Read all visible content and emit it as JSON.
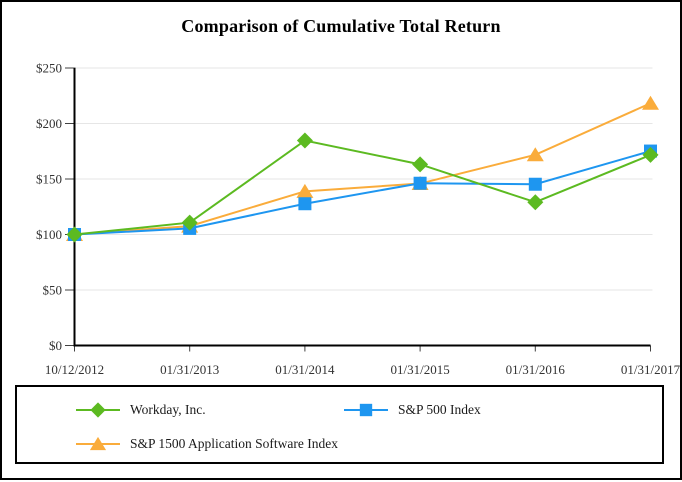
{
  "chart_data": {
    "type": "line",
    "title": "Comparison of Cumulative Total Return",
    "categories": [
      "10/12/2012",
      "01/31/2013",
      "01/31/2014",
      "01/31/2015",
      "01/31/2016",
      "01/31/2017"
    ],
    "series": [
      {
        "name": "Workday, Inc.",
        "marker": "diamond",
        "color": "#5CBA21",
        "values": [
          100,
          110.73,
          184.63,
          163.19,
          129.07,
          171.7
        ]
      },
      {
        "name": "S&P 500 Index",
        "marker": "square",
        "color": "#1E96F0",
        "values": [
          100,
          105.49,
          127.72,
          146.18,
          145.28,
          175.17
        ]
      },
      {
        "name": "S&P 1500 Application Software Index",
        "marker": "triangle",
        "color": "#FAAC3B",
        "values": [
          100,
          107.59,
          138.9,
          145.91,
          171.81,
          218.26
        ]
      }
    ],
    "ylim": [
      0,
      250
    ],
    "y_ticks": [
      {
        "label": "$0",
        "value": 0
      },
      {
        "label": "$50",
        "value": 50
      },
      {
        "label": "$100",
        "value": 100
      },
      {
        "label": "$150",
        "value": 150
      },
      {
        "label": "$200",
        "value": 200
      },
      {
        "label": "$250",
        "value": 250
      }
    ],
    "xlabel": "",
    "ylabel": "",
    "grid": true,
    "legend_position": "bottom-box",
    "colors": {
      "grid": "#E6E6E6",
      "axis": "#000000",
      "tick": "#404040",
      "label": "#333333"
    }
  }
}
